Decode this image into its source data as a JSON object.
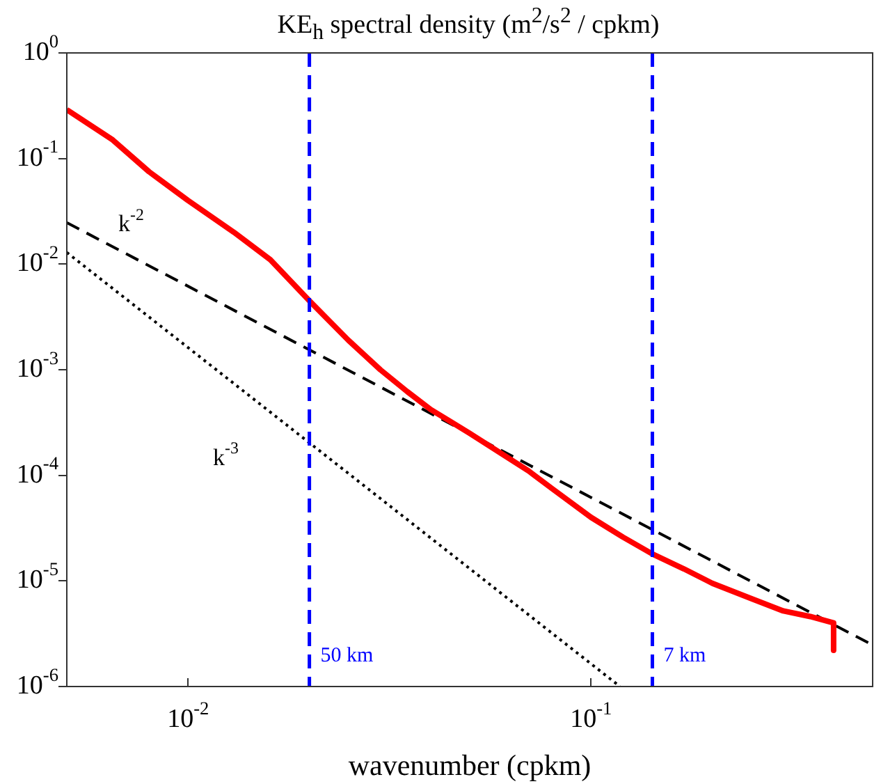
{
  "chart_data": {
    "type": "line",
    "title": "KE$_{h}$ spectral density (m$^{2}$/s$^{2}$ / cpkm)",
    "xlabel": "wavenumber (cpkm)",
    "log": "xy",
    "grid": false,
    "legend": false,
    "xlim": [
      0.005,
      0.5
    ],
    "ylim": [
      1e-06,
      1
    ],
    "xticks": [
      {
        "value": 0.01,
        "label": "10$^{-2}$"
      },
      {
        "value": 0.1,
        "label": "10$^{-1}$"
      }
    ],
    "yticks": [
      {
        "value": 1e-06,
        "label": "10$^{-6}$"
      },
      {
        "value": 1e-05,
        "label": "10$^{-5}$"
      },
      {
        "value": 0.0001,
        "label": "10$^{-4}$"
      },
      {
        "value": 0.001,
        "label": "10$^{-3}$"
      },
      {
        "value": 0.01,
        "label": "10$^{-2}$"
      },
      {
        "value": 0.1,
        "label": "10$^{-1}$"
      },
      {
        "value": 1,
        "label": "10$^{0}$"
      }
    ],
    "series": [
      {
        "color": "#ff0000",
        "line_style": "solid",
        "x": [
          0.005,
          0.0065,
          0.008,
          0.01,
          0.013,
          0.016,
          0.02,
          0.025,
          0.03,
          0.035,
          0.04,
          0.045,
          0.05,
          0.06,
          0.07,
          0.08,
          0.1,
          0.12,
          0.142,
          0.17,
          0.2,
          0.25,
          0.3,
          0.35,
          0.4,
          0.4
        ],
        "values": [
          0.29,
          0.15,
          0.075,
          0.04,
          0.02,
          0.011,
          0.0045,
          0.0019,
          0.001,
          0.00062,
          0.00042,
          0.00032,
          0.00025,
          0.00016,
          0.00011,
          7.5e-05,
          4e-05,
          2.6e-05,
          1.8e-05,
          1.3e-05,
          9.5e-06,
          6.8e-06,
          5.2e-06,
          4.6e-06,
          4e-06,
          2.2e-06
        ]
      },
      {
        "name": "k$^{-2}$",
        "color": "#000000",
        "line_style": "dashed",
        "x": [
          0.005,
          0.5
        ],
        "values": [
          0.0247,
          2.47e-06
        ]
      },
      {
        "name": "k$^{-3}$",
        "color": "#000000",
        "line_style": "dotted",
        "x": [
          0.005,
          0.118
        ],
        "values": [
          0.0129,
          1e-06
        ]
      }
    ],
    "ref_lines": [
      {
        "axis": "x",
        "value": 0.02,
        "label": "50 km",
        "color": "#0000ff",
        "line_style": "dashed"
      },
      {
        "axis": "x",
        "value": 0.142,
        "label": "7 km",
        "color": "#0000ff",
        "line_style": "dashed"
      }
    ]
  }
}
